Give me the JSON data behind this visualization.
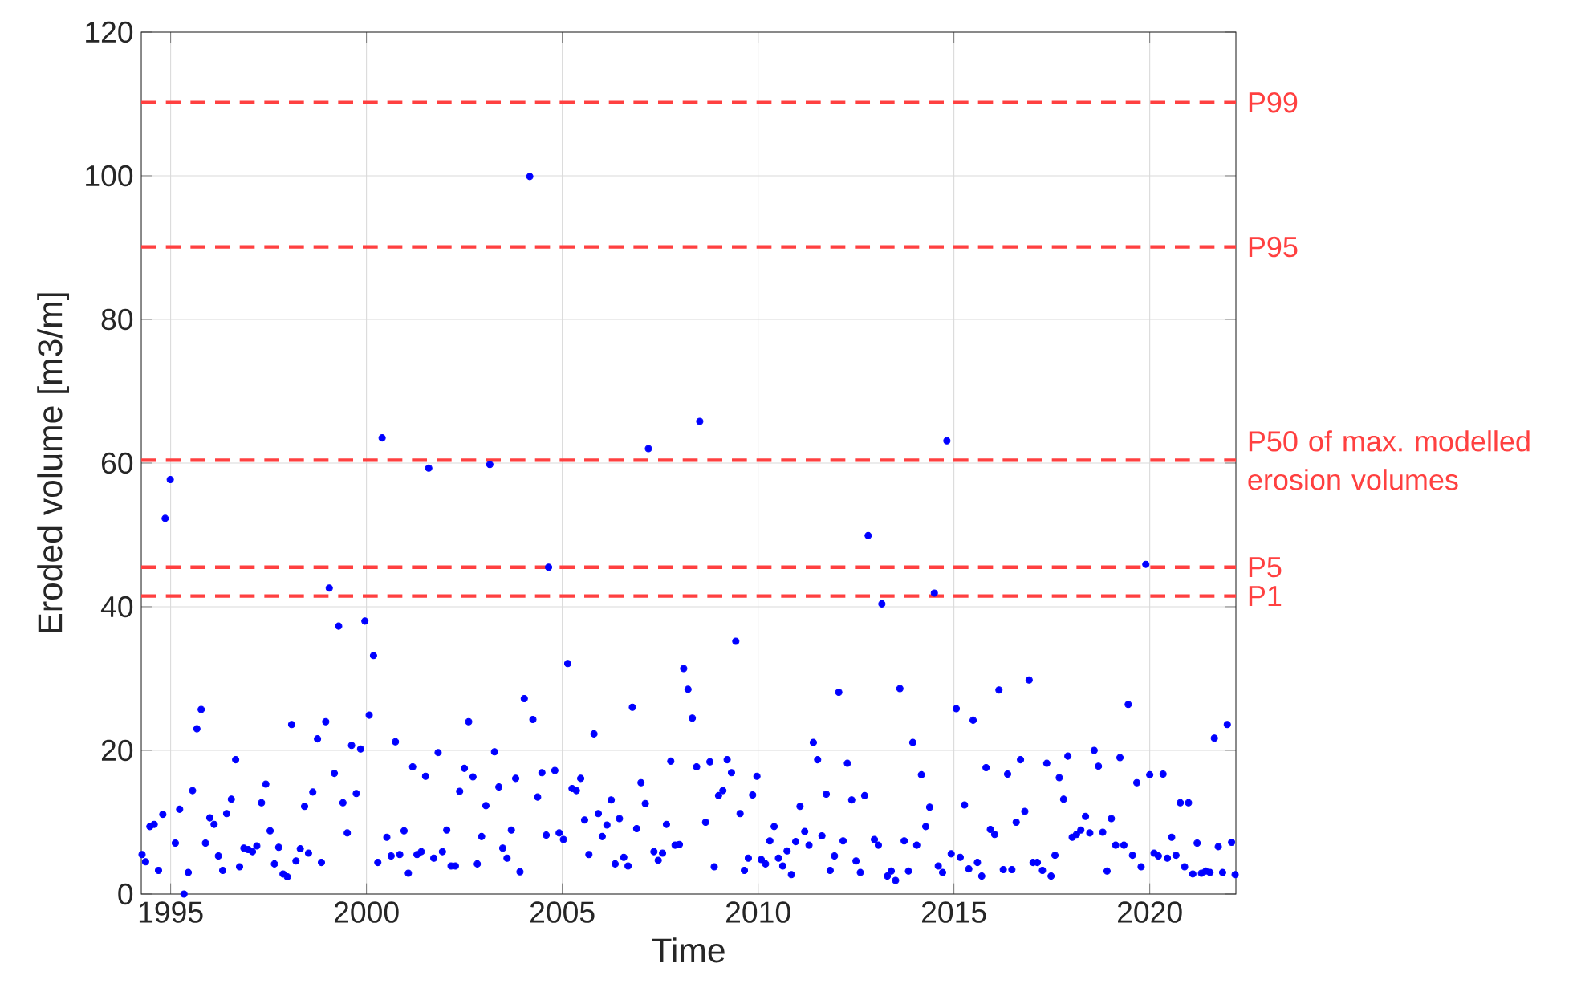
{
  "chart_data": {
    "type": "scatter",
    "xlabel": "Time",
    "ylabel": "Eroded volume [m3/m]",
    "xlim": [
      1994.25,
      2022.2
    ],
    "ylim": [
      0,
      120
    ],
    "xticks": [
      1995,
      2000,
      2005,
      2010,
      2015,
      2020
    ],
    "yticks": [
      0,
      20,
      40,
      60,
      80,
      100,
      120
    ],
    "grid": true,
    "marker": "circle",
    "series": [
      {
        "color": "#0000ff",
        "x": [
          1994.27,
          1994.36,
          1994.47,
          1994.58,
          1994.69,
          1994.8,
          1994.86,
          1994.99,
          1995.12,
          1995.23,
          1995.34,
          1995.45,
          1995.56,
          1995.67,
          1995.78,
          1995.89,
          1996.0,
          1996.11,
          1996.22,
          1996.33,
          1996.43,
          1996.55,
          1996.66,
          1996.76,
          1996.87,
          1996.98,
          1997.09,
          1997.2,
          1997.32,
          1997.43,
          1997.54,
          1997.65,
          1997.76,
          1997.87,
          1997.98,
          1998.09,
          1998.2,
          1998.31,
          1998.42,
          1998.52,
          1998.63,
          1998.75,
          1998.85,
          1998.96,
          1999.05,
          1999.18,
          1999.29,
          1999.4,
          1999.51,
          1999.62,
          1999.74,
          1999.85,
          1999.96,
          2000.07,
          2000.18,
          2000.29,
          2000.4,
          2000.52,
          2000.63,
          2000.74,
          2000.85,
          2000.96,
          2001.07,
          2001.18,
          2001.29,
          2001.4,
          2001.51,
          2001.59,
          2001.72,
          2001.83,
          2001.94,
          2002.05,
          2002.16,
          2002.27,
          2002.38,
          2002.5,
          2002.61,
          2002.72,
          2002.83,
          2002.94,
          2003.05,
          2003.15,
          2003.27,
          2003.38,
          2003.48,
          2003.59,
          2003.7,
          2003.81,
          2003.92,
          2004.03,
          2004.17,
          2004.25,
          2004.37,
          2004.48,
          2004.59,
          2004.65,
          2004.81,
          2004.92,
          2005.03,
          2005.14,
          2005.25,
          2005.36,
          2005.47,
          2005.57,
          2005.68,
          2005.81,
          2005.92,
          2006.02,
          2006.14,
          2006.25,
          2006.35,
          2006.46,
          2006.57,
          2006.68,
          2006.79,
          2006.9,
          2007.01,
          2007.12,
          2007.2,
          2007.34,
          2007.45,
          2007.56,
          2007.66,
          2007.77,
          2007.88,
          2007.99,
          2008.1,
          2008.21,
          2008.32,
          2008.43,
          2008.51,
          2008.66,
          2008.77,
          2008.88,
          2008.99,
          2009.1,
          2009.21,
          2009.32,
          2009.43,
          2009.54,
          2009.65,
          2009.75,
          2009.86,
          2009.97,
          2010.08,
          2010.19,
          2010.3,
          2010.41,
          2010.52,
          2010.63,
          2010.74,
          2010.85,
          2010.96,
          2011.07,
          2011.19,
          2011.3,
          2011.41,
          2011.52,
          2011.63,
          2011.74,
          2011.84,
          2011.95,
          2012.06,
          2012.17,
          2012.28,
          2012.39,
          2012.5,
          2012.61,
          2012.72,
          2012.81,
          2012.97,
          2013.07,
          2013.16,
          2013.3,
          2013.4,
          2013.51,
          2013.62,
          2013.73,
          2013.84,
          2013.95,
          2014.05,
          2014.17,
          2014.28,
          2014.38,
          2014.5,
          2014.6,
          2014.71,
          2014.82,
          2014.93,
          2015.06,
          2015.16,
          2015.27,
          2015.38,
          2015.49,
          2015.6,
          2015.71,
          2015.82,
          2015.93,
          2016.04,
          2016.15,
          2016.26,
          2016.37,
          2016.48,
          2016.59,
          2016.7,
          2016.81,
          2016.92,
          2017.02,
          2017.13,
          2017.26,
          2017.37,
          2017.48,
          2017.58,
          2017.69,
          2017.8,
          2017.91,
          2018.02,
          2018.13,
          2018.24,
          2018.36,
          2018.47,
          2018.58,
          2018.69,
          2018.8,
          2018.91,
          2019.02,
          2019.13,
          2019.24,
          2019.34,
          2019.45,
          2019.56,
          2019.67,
          2019.78,
          2019.9,
          2020.0,
          2020.11,
          2020.22,
          2020.34,
          2020.45,
          2020.56,
          2020.67,
          2020.78,
          2020.89,
          2020.99,
          2021.1,
          2021.21,
          2021.32,
          2021.43,
          2021.54,
          2021.65,
          2021.75,
          2021.86,
          2021.98,
          2022.09,
          2022.18
        ],
        "values": [
          5.5,
          4.5,
          9.4,
          9.7,
          3.3,
          11.1,
          52.3,
          57.7,
          7.1,
          11.8,
          0,
          3.0,
          14.4,
          23.0,
          25.7,
          7.1,
          10.6,
          9.7,
          5.3,
          3.3,
          11.2,
          13.2,
          18.7,
          3.8,
          6.4,
          6.2,
          5.9,
          6.7,
          12.7,
          15.3,
          8.8,
          4.2,
          6.5,
          2.8,
          2.4,
          23.6,
          4.6,
          6.3,
          12.2,
          5.7,
          14.2,
          21.6,
          4.4,
          24.0,
          42.6,
          16.8,
          37.3,
          12.7,
          8.5,
          20.7,
          14.0,
          20.2,
          38.0,
          24.9,
          33.2,
          4.4,
          63.5,
          7.9,
          5.3,
          21.2,
          5.5,
          8.8,
          2.9,
          17.7,
          5.5,
          5.9,
          16.4,
          59.3,
          5.0,
          19.7,
          5.9,
          8.9,
          3.9,
          3.9,
          14.3,
          17.5,
          24.0,
          16.3,
          4.2,
          8.0,
          12.3,
          59.8,
          19.8,
          14.9,
          6.4,
          5.0,
          8.9,
          16.1,
          3.1,
          27.2,
          99.9,
          24.3,
          13.5,
          16.9,
          8.2,
          45.5,
          17.2,
          8.5,
          7.6,
          32.1,
          14.7,
          14.4,
          16.1,
          10.3,
          5.5,
          22.3,
          11.2,
          8.0,
          9.6,
          13.1,
          4.2,
          10.5,
          5.1,
          3.9,
          26.0,
          9.1,
          15.5,
          12.6,
          62.0,
          5.9,
          4.7,
          5.7,
          9.7,
          18.5,
          6.8,
          6.9,
          31.4,
          28.5,
          24.5,
          17.7,
          65.8,
          10.0,
          18.4,
          3.8,
          13.7,
          14.4,
          18.7,
          16.9,
          35.2,
          11.2,
          3.3,
          5.0,
          13.8,
          16.4,
          4.8,
          4.2,
          7.4,
          9.4,
          5.0,
          3.9,
          6.0,
          2.7,
          7.3,
          12.2,
          8.7,
          6.8,
          21.1,
          18.7,
          8.1,
          13.9,
          3.3,
          5.3,
          28.1,
          7.4,
          18.2,
          13.1,
          4.6,
          3.0,
          13.7,
          49.9,
          7.6,
          6.8,
          40.4,
          2.5,
          3.2,
          1.9,
          28.6,
          7.4,
          3.2,
          21.1,
          6.8,
          16.6,
          9.4,
          12.1,
          41.9,
          3.9,
          3.0,
          63.1,
          5.6,
          25.8,
          5.1,
          12.4,
          3.5,
          24.2,
          4.4,
          2.5,
          17.6,
          9.0,
          8.3,
          28.4,
          3.4,
          16.7,
          3.4,
          10.0,
          18.7,
          11.5,
          29.8,
          4.4,
          4.4,
          3.3,
          18.2,
          2.5,
          5.4,
          16.2,
          13.2,
          19.2,
          7.9,
          8.3,
          8.9,
          10.8,
          8.5,
          20.0,
          17.8,
          8.6,
          3.2,
          10.5,
          6.8,
          19.0,
          6.8,
          26.4,
          5.4,
          15.5,
          3.8,
          45.9,
          16.6,
          5.7,
          5.3,
          16.7,
          5.0,
          7.9,
          5.4,
          12.7,
          3.8,
          12.7,
          2.8,
          7.1,
          2.9,
          3.2,
          3.0,
          21.7,
          6.6,
          3.0,
          23.6,
          7.2,
          2.7
        ]
      }
    ],
    "ref_lines": [
      {
        "axis": "y",
        "value": 110.2,
        "label": "P99",
        "color": "#ff4040",
        "line_style": "dashed"
      },
      {
        "axis": "y",
        "value": 90.1,
        "label": "P95",
        "color": "#ff4040",
        "line_style": "dashed"
      },
      {
        "axis": "y",
        "value": 60.4,
        "label": "P50 of max. modelled erosion volumes",
        "color": "#ff4040",
        "line_style": "dashed"
      },
      {
        "axis": "y",
        "value": 45.5,
        "label": "P5",
        "color": "#ff4040",
        "line_style": "dashed"
      },
      {
        "axis": "y",
        "value": 41.5,
        "label": "P1",
        "color": "#ff4040",
        "line_style": "dashed"
      }
    ]
  }
}
